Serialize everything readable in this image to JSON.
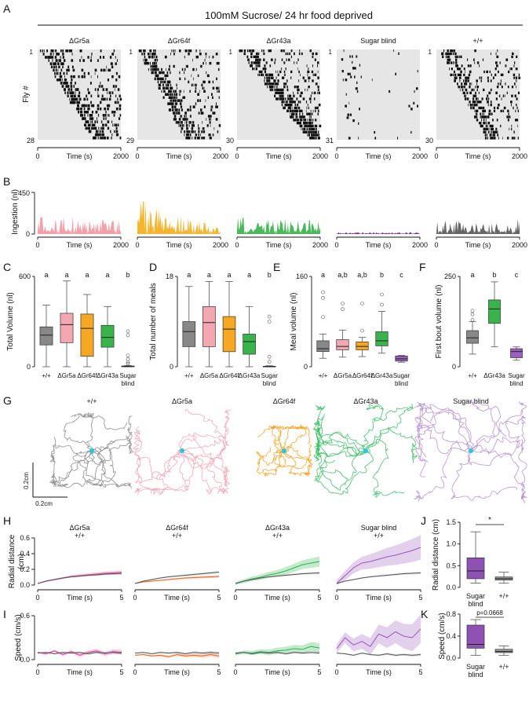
{
  "title": "100mM Sucrose/ 24 hr food deprived",
  "panel_letters": [
    "A",
    "B",
    "C",
    "D",
    "E",
    "F",
    "G",
    "H",
    "I",
    "J",
    "K"
  ],
  "panel_a": {
    "ylabel": "Fly #",
    "xlabel": "Time (s)",
    "xticks": [
      "0",
      "2000"
    ],
    "top_label": "1",
    "groups": [
      {
        "name": "ΔGr5a",
        "n": "28",
        "density": 0.6,
        "slope": 0.65
      },
      {
        "name": "ΔGr64f",
        "n": "29",
        "density": 0.55,
        "slope": 0.55
      },
      {
        "name": "ΔGr43a",
        "n": "30",
        "density": 0.6,
        "slope": 0.85
      },
      {
        "name": "Sugar blind",
        "n": "31",
        "density": 0.05,
        "slope": 0.1
      },
      {
        "name": "+/+",
        "n": "30",
        "density": 0.45,
        "slope": 0.6
      }
    ]
  },
  "panel_b": {
    "ylabel": "Ingestion (nl)",
    "yticks": [
      "0",
      "450"
    ],
    "xlabel": "Time (s)",
    "xticks": [
      "0",
      "2000"
    ],
    "groups": [
      {
        "name": "ΔGr5a",
        "color": "#f4a0a8",
        "peak": 0.45,
        "decay": 0.2
      },
      {
        "name": "ΔGr64f",
        "color": "#f5b52e",
        "peak": 0.9,
        "decay": 0.85
      },
      {
        "name": "ΔGr43a",
        "color": "#4cb85c",
        "peak": 0.42,
        "decay": 0.15
      },
      {
        "name": "Sugar blind",
        "color": "#7a1fa2",
        "peak": 0.05,
        "decay": 0.0
      },
      {
        "name": "+/+",
        "color": "#666666",
        "peak": 0.4,
        "decay": 0.05
      }
    ]
  },
  "chart_data": [
    {
      "type": "box",
      "panel": "C",
      "ylabel": "Total Volume (nl)",
      "ylim": [
        0,
        600
      ],
      "yticks": [
        "0",
        "600"
      ],
      "categories": [
        "+/+",
        "ΔGr5a",
        "ΔGr64f",
        "ΔGr43a",
        "Sugar blind"
      ],
      "colors": [
        "#888888",
        "#f4a7b0",
        "#f7a823",
        "#38b44a",
        "#9b5fc0"
      ],
      "boxes": [
        {
          "min": 0,
          "q1": 145,
          "med": 210,
          "q3": 265,
          "max": 410
        },
        {
          "min": 0,
          "q1": 160,
          "med": 280,
          "q3": 355,
          "max": 570
        },
        {
          "min": 0,
          "q1": 70,
          "med": 255,
          "q3": 350,
          "max": 480
        },
        {
          "min": 0,
          "q1": 130,
          "med": 195,
          "q3": 275,
          "max": 400
        },
        {
          "min": 0,
          "q1": 0,
          "med": 2,
          "q3": 5,
          "max": 8
        }
      ],
      "outliers": [
        [],
        [],
        [],
        [],
        [
          235,
          210,
          75,
          50,
          30,
          20
        ]
      ],
      "letters": [
        "a",
        "a",
        "a",
        "a",
        "b"
      ]
    },
    {
      "type": "box",
      "panel": "D",
      "ylabel": "Total number of meals",
      "ylim": [
        0,
        18
      ],
      "yticks": [
        "0",
        "18"
      ],
      "categories": [
        "+/+",
        "ΔGr5a",
        "ΔGr64f",
        "ΔGr43a",
        "Sugar blind"
      ],
      "colors": [
        "#888888",
        "#f4a7b0",
        "#f7a823",
        "#38b44a",
        "#9b5fc0"
      ],
      "boxes": [
        {
          "min": 0,
          "q1": 4,
          "med": 7,
          "q3": 9,
          "max": 16
        },
        {
          "min": 0,
          "q1": 4,
          "med": 8.8,
          "q3": 12,
          "max": 17
        },
        {
          "min": 0,
          "q1": 3,
          "med": 7.5,
          "q3": 10,
          "max": 17
        },
        {
          "min": 0,
          "q1": 2.5,
          "med": 5,
          "q3": 6.5,
          "max": 12
        },
        {
          "min": 0,
          "q1": 0,
          "med": 0,
          "q3": 0.1,
          "max": 0.2
        }
      ],
      "outliers": [
        [],
        [],
        [],
        [],
        [
          10,
          9,
          2,
          1
        ]
      ],
      "letters": [
        "a",
        "a",
        "a",
        "a",
        "b"
      ]
    },
    {
      "type": "box",
      "panel": "E",
      "ylabel": "Meal volume (nl)",
      "ylim": [
        0,
        160
      ],
      "yticks": [
        "0",
        "160"
      ],
      "categories": [
        "+/+",
        "ΔGr5a",
        "ΔGr64f",
        "ΔGr43a",
        "Sugar blind"
      ],
      "colors": [
        "#888888",
        "#f4a7b0",
        "#f7a823",
        "#38b44a",
        "#9b5fc0"
      ],
      "boxes": [
        {
          "min": 15,
          "q1": 27,
          "med": 32,
          "q3": 46,
          "max": 58
        },
        {
          "min": 17,
          "q1": 30,
          "med": 36,
          "q3": 48,
          "max": 65
        },
        {
          "min": 18,
          "q1": 30,
          "med": 36,
          "q3": 44,
          "max": 52
        },
        {
          "min": 24,
          "q1": 37,
          "med": 46,
          "q3": 62,
          "max": 98
        },
        {
          "min": 8,
          "q1": 10,
          "med": 14,
          "q3": 19,
          "max": 20
        }
      ],
      "outliers": [
        [
          132,
          122,
          88
        ],
        [
          112,
          102
        ],
        [
          112,
          64
        ],
        [
          128,
          110
        ],
        []
      ],
      "letters": [
        "a",
        "a,b",
        "a,b",
        "b",
        "c"
      ]
    },
    {
      "type": "box",
      "panel": "F",
      "ylabel": "First bout volume (nl)",
      "ylim": [
        0,
        250
      ],
      "yticks": [
        "0",
        "250"
      ],
      "categories": [
        "+/+",
        "ΔGr43a",
        "Sugar blind"
      ],
      "colors": [
        "#888888",
        "#38b44a",
        "#9b5fc0"
      ],
      "boxes": [
        {
          "min": 35,
          "q1": 65,
          "med": 80,
          "q3": 100,
          "max": 125
        },
        {
          "min": 55,
          "q1": 120,
          "med": 160,
          "q3": 185,
          "max": 235
        },
        {
          "min": 18,
          "q1": 25,
          "med": 42,
          "q3": 50,
          "max": 55
        }
      ],
      "outliers": [
        [
          155,
          145,
          130
        ],
        [],
        []
      ],
      "letters": [
        "a",
        "b",
        "c"
      ]
    },
    {
      "type": "line",
      "panel": "H",
      "ylabel": "Radial distance (cm)",
      "ylim": [
        0,
        0.6
      ],
      "yticks": [
        "0.0",
        "0.2",
        "0.4",
        "0.6"
      ],
      "xlabel": "Time (s)",
      "xticks": [
        "0",
        "5"
      ],
      "x": [
        0,
        0.5,
        1,
        1.5,
        2,
        2.5,
        3,
        3.5,
        4,
        4.5,
        5
      ],
      "subplots": [
        {
          "label": "ΔGr5a",
          "ref": "+/+",
          "color": "#e4389c",
          "series": [
            {
              "name": "ΔGr5a",
              "values": [
                0.02,
                0.05,
                0.07,
                0.09,
                0.11,
                0.12,
                0.13,
                0.14,
                0.15,
                0.155,
                0.16
              ],
              "sem": 0.02
            },
            {
              "name": "+/+",
              "values": [
                0.02,
                0.05,
                0.07,
                0.09,
                0.105,
                0.115,
                0.125,
                0.13,
                0.14,
                0.145,
                0.15
              ],
              "sem": 0.012
            }
          ]
        },
        {
          "label": "ΔGr64f",
          "ref": "+/+",
          "color": "#f0641e",
          "series": [
            {
              "name": "ΔGr64f",
              "values": [
                0.02,
                0.04,
                0.05,
                0.06,
                0.07,
                0.08,
                0.09,
                0.095,
                0.1,
                0.105,
                0.11
              ],
              "sem": 0.012
            },
            {
              "name": "+/+",
              "values": [
                0.02,
                0.05,
                0.07,
                0.09,
                0.105,
                0.115,
                0.125,
                0.135,
                0.145,
                0.155,
                0.165
              ],
              "sem": 0.012
            }
          ]
        },
        {
          "label": "ΔGr43a",
          "ref": "+/+",
          "color": "#2cb34a",
          "series": [
            {
              "name": "ΔGr43a",
              "values": [
                0.02,
                0.05,
                0.08,
                0.1,
                0.13,
                0.15,
                0.18,
                0.22,
                0.26,
                0.28,
                0.3
              ],
              "sem": 0.05
            },
            {
              "name": "+/+",
              "values": [
                0.02,
                0.05,
                0.07,
                0.09,
                0.105,
                0.115,
                0.125,
                0.135,
                0.145,
                0.15,
                0.155
              ],
              "sem": 0.012
            }
          ]
        },
        {
          "label": "Sugar blind",
          "ref": "+/+",
          "color": "#9a55be",
          "series": [
            {
              "name": "Sugar blind",
              "values": [
                0.02,
                0.12,
                0.22,
                0.28,
                0.3,
                0.33,
                0.36,
                0.38,
                0.41,
                0.44,
                0.48
              ],
              "sem": 0.12
            },
            {
              "name": "+/+",
              "values": [
                0.02,
                0.05,
                0.07,
                0.09,
                0.105,
                0.115,
                0.125,
                0.135,
                0.145,
                0.15,
                0.155
              ],
              "sem": 0.012
            }
          ]
        }
      ]
    },
    {
      "type": "line",
      "panel": "I",
      "ylabel": "Speed (cm/s)",
      "ylim": [
        0,
        0.6
      ],
      "yticks": [
        "0.0",
        "0.6"
      ],
      "xlabel": "Time (s)",
      "xticks": [
        "0",
        "5"
      ],
      "x": [
        0,
        0.5,
        1,
        1.5,
        2,
        2.5,
        3,
        3.5,
        4,
        4.5,
        5
      ],
      "subplots": [
        {
          "label": "ΔGr5a",
          "color": "#e4389c",
          "series": [
            {
              "name": "ΔGr5a",
              "values": [
                0.1,
                0.08,
                0.12,
                0.07,
                0.11,
                0.06,
                0.1,
                0.12,
                0.08,
                0.11,
                0.1
              ],
              "sem": 0.025
            },
            {
              "name": "+/+",
              "values": [
                0.09,
                0.1,
                0.08,
                0.1,
                0.09,
                0.1,
                0.08,
                0.1,
                0.09,
                0.1,
                0.09
              ],
              "sem": 0.015
            }
          ]
        },
        {
          "label": "ΔGr64f",
          "color": "#f0641e",
          "series": [
            {
              "name": "ΔGr64f",
              "values": [
                0.06,
                0.07,
                0.05,
                0.06,
                0.04,
                0.07,
                0.05,
                0.06,
                0.05,
                0.07,
                0.05
              ],
              "sem": 0.02
            },
            {
              "name": "+/+",
              "values": [
                0.09,
                0.1,
                0.08,
                0.1,
                0.09,
                0.1,
                0.08,
                0.1,
                0.09,
                0.1,
                0.09
              ],
              "sem": 0.015
            }
          ]
        },
        {
          "label": "ΔGr43a",
          "color": "#2cb34a",
          "series": [
            {
              "name": "ΔGr43a",
              "values": [
                0.08,
                0.1,
                0.09,
                0.11,
                0.1,
                0.12,
                0.13,
                0.15,
                0.14,
                0.18,
                0.16
              ],
              "sem": 0.05
            },
            {
              "name": "+/+",
              "values": [
                0.09,
                0.1,
                0.08,
                0.1,
                0.09,
                0.1,
                0.08,
                0.1,
                0.09,
                0.1,
                0.09
              ],
              "sem": 0.015
            }
          ]
        },
        {
          "label": "Sugar blind",
          "color": "#9a55be",
          "series": [
            {
              "name": "Sugar blind",
              "values": [
                0.15,
                0.3,
                0.2,
                0.25,
                0.18,
                0.35,
                0.3,
                0.38,
                0.32,
                0.3,
                0.42
              ],
              "sem": 0.15
            },
            {
              "name": "+/+",
              "values": [
                0.09,
                0.08,
                0.06,
                0.09,
                0.07,
                0.06,
                0.08,
                0.06,
                0.07,
                0.06,
                0.07
              ],
              "sem": 0.015
            }
          ]
        }
      ]
    },
    {
      "type": "box",
      "panel": "J",
      "ylabel": "Radial distance (cm)",
      "ylim": [
        0,
        1.5
      ],
      "yticks": [
        "0.0",
        "0.5",
        "1.0",
        "1.5"
      ],
      "categories": [
        "Sugar blind",
        "+/+"
      ],
      "colors": [
        "#8e52b5",
        "#999999"
      ],
      "boxes": [
        {
          "min": 0.1,
          "q1": 0.2,
          "med": 0.38,
          "q3": 0.68,
          "max": 1.28
        },
        {
          "min": 0.1,
          "q1": 0.17,
          "med": 0.2,
          "q3": 0.24,
          "max": 0.35
        }
      ],
      "annotation": "*"
    },
    {
      "type": "box",
      "panel": "K",
      "ylabel": "Speed (cm/s)",
      "ylim": [
        0,
        0.8
      ],
      "yticks": [
        "0.0",
        "0.4",
        "0.8"
      ],
      "categories": [
        "Sugar blind",
        "+/+"
      ],
      "colors": [
        "#8e52b5",
        "#999999"
      ],
      "boxes": [
        {
          "min": 0.05,
          "q1": 0.18,
          "med": 0.25,
          "q3": 0.6,
          "max": 0.7
        },
        {
          "min": 0.05,
          "q1": 0.1,
          "med": 0.12,
          "q3": 0.16,
          "max": 0.22
        }
      ],
      "annotation": "p=0.0668"
    }
  ],
  "panel_g": {
    "scale_x": "0.2cm",
    "scale_y": "0.2cm",
    "groups": [
      {
        "name": "+/+",
        "label_color": "#111111",
        "color": "#8a8a8a"
      },
      {
        "name": "ΔGr5a",
        "label_color": "#e4389c",
        "color": "#f2a3b6"
      },
      {
        "name": "ΔGr64f",
        "label_color": "#f0641e",
        "color": "#f4a124"
      },
      {
        "name": "ΔGr43a",
        "label_color": "#2cb34a",
        "color": "#3bbd63"
      },
      {
        "name": "Sugar blind",
        "label_color": "#9a55be",
        "color": "#b58fd1"
      }
    ],
    "center_color": "#24c8e0"
  }
}
